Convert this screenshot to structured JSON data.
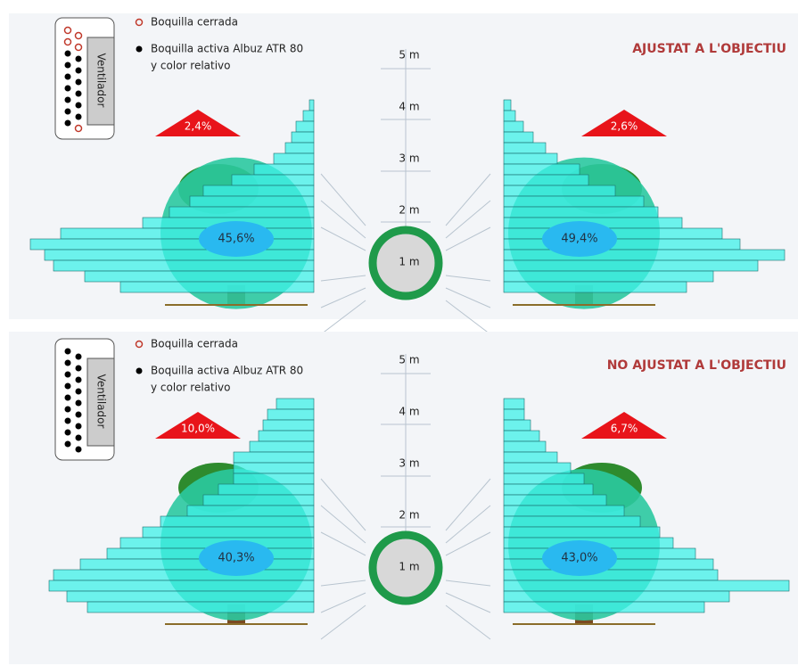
{
  "panels": [
    {
      "title": "AJUSTAT A L'OBJECTIU",
      "legend": {
        "closed": "Boquilla cerrada",
        "active": [
          "Boquilla activa Albuz ATR 80",
          "y color relativo"
        ]
      },
      "fan_label": "Ventilador",
      "left": {
        "top_percent": "2,4%",
        "canopy_percent": "45,6%"
      },
      "right": {
        "top_percent": "2,6%",
        "canopy_percent": "49,4%"
      },
      "height_labels": [
        "5 m",
        "4 m",
        "3 m",
        "2 m",
        "1 m"
      ]
    },
    {
      "title": "NO AJUSTAT A L'OBJECTIU",
      "legend": {
        "closed": "Boquilla cerrada",
        "active": [
          "Boquilla activa Albuz ATR 80",
          "y color relativo"
        ]
      },
      "fan_label": "Ventilador",
      "left": {
        "top_percent": "10,0%",
        "canopy_percent": "40,3%"
      },
      "right": {
        "top_percent": "6,7%",
        "canopy_percent": "43,0%"
      },
      "height_labels": [
        "5 m",
        "4 m",
        "3 m",
        "2 m",
        "1 m"
      ]
    }
  ]
}
